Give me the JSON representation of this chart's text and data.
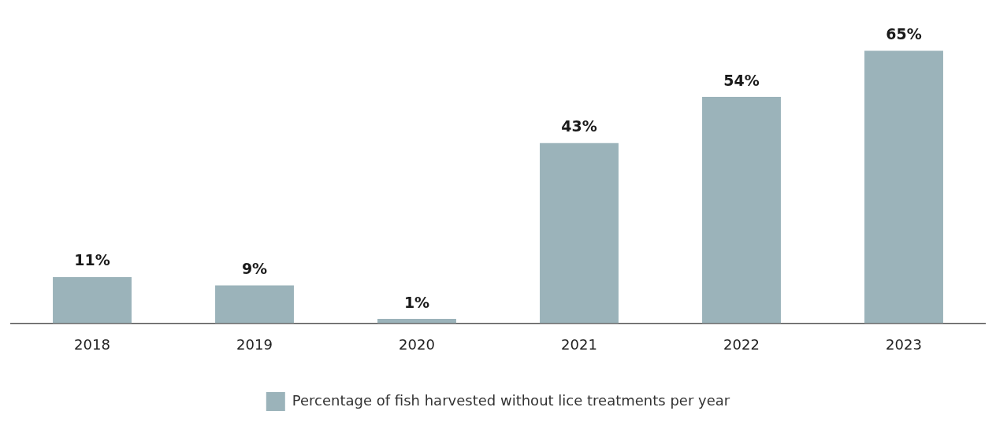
{
  "chart_data": {
    "type": "bar",
    "categories": [
      "2018",
      "2019",
      "2020",
      "2021",
      "2022",
      "2023"
    ],
    "series": [
      {
        "name": "Percentage of fish harvested without lice treatments per year",
        "color": "#9bb3ba",
        "values": [
          11,
          9,
          1,
          43,
          54,
          65
        ],
        "value_labels": [
          "11%",
          "9%",
          "1%",
          "43%",
          "54%",
          "65%"
        ]
      }
    ],
    "legend": "bottom",
    "grid": false
  }
}
